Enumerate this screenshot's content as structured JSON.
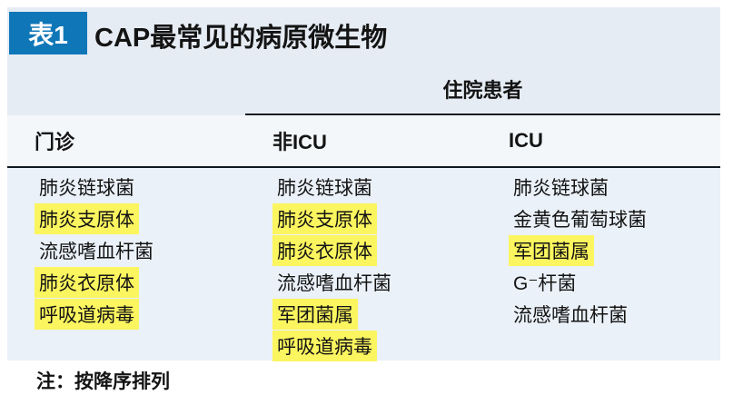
{
  "page": {
    "badge": "表1",
    "title": "CAP最常见的病原微生物",
    "note": "注：按降序排列"
  },
  "table": {
    "group_header": "住院患者",
    "columns": [
      {
        "id": "outpatient",
        "label": "门诊",
        "rows": [
          {
            "text": "肺炎链球菌",
            "highlight": false
          },
          {
            "text": "肺炎支原体",
            "highlight": true
          },
          {
            "text": "流感嗜血杆菌",
            "highlight": false
          },
          {
            "text": "肺炎衣原体",
            "highlight": true
          },
          {
            "text": "呼吸道病毒",
            "highlight": true
          }
        ]
      },
      {
        "id": "non-icu",
        "label": "非ICU",
        "rows": [
          {
            "text": "肺炎链球菌",
            "highlight": false
          },
          {
            "text": "肺炎支原体",
            "highlight": true
          },
          {
            "text": "肺炎衣原体",
            "highlight": true
          },
          {
            "text": "流感嗜血杆菌",
            "highlight": false
          },
          {
            "text": "军团菌属",
            "highlight": true
          },
          {
            "text": "呼吸道病毒",
            "highlight": true
          }
        ]
      },
      {
        "id": "icu",
        "label": "ICU",
        "rows": [
          {
            "text": "肺炎链球菌",
            "highlight": false
          },
          {
            "text": "金黄色葡萄球菌",
            "highlight": false
          },
          {
            "text": "军团菌属",
            "highlight": true
          },
          {
            "text": "G⁻杆菌",
            "highlight": false
          },
          {
            "text": "流感嗜血杆菌",
            "highlight": false
          }
        ]
      }
    ]
  },
  "colors": {
    "badge_bg": "#0f77b8",
    "highlight": "#fbf55f",
    "panel_top_bg": "#e6ecf4",
    "header_row_bg": "#f3f7fa",
    "body_bg": "#eaf1f8",
    "rule": "#101820",
    "text": "#141414"
  }
}
